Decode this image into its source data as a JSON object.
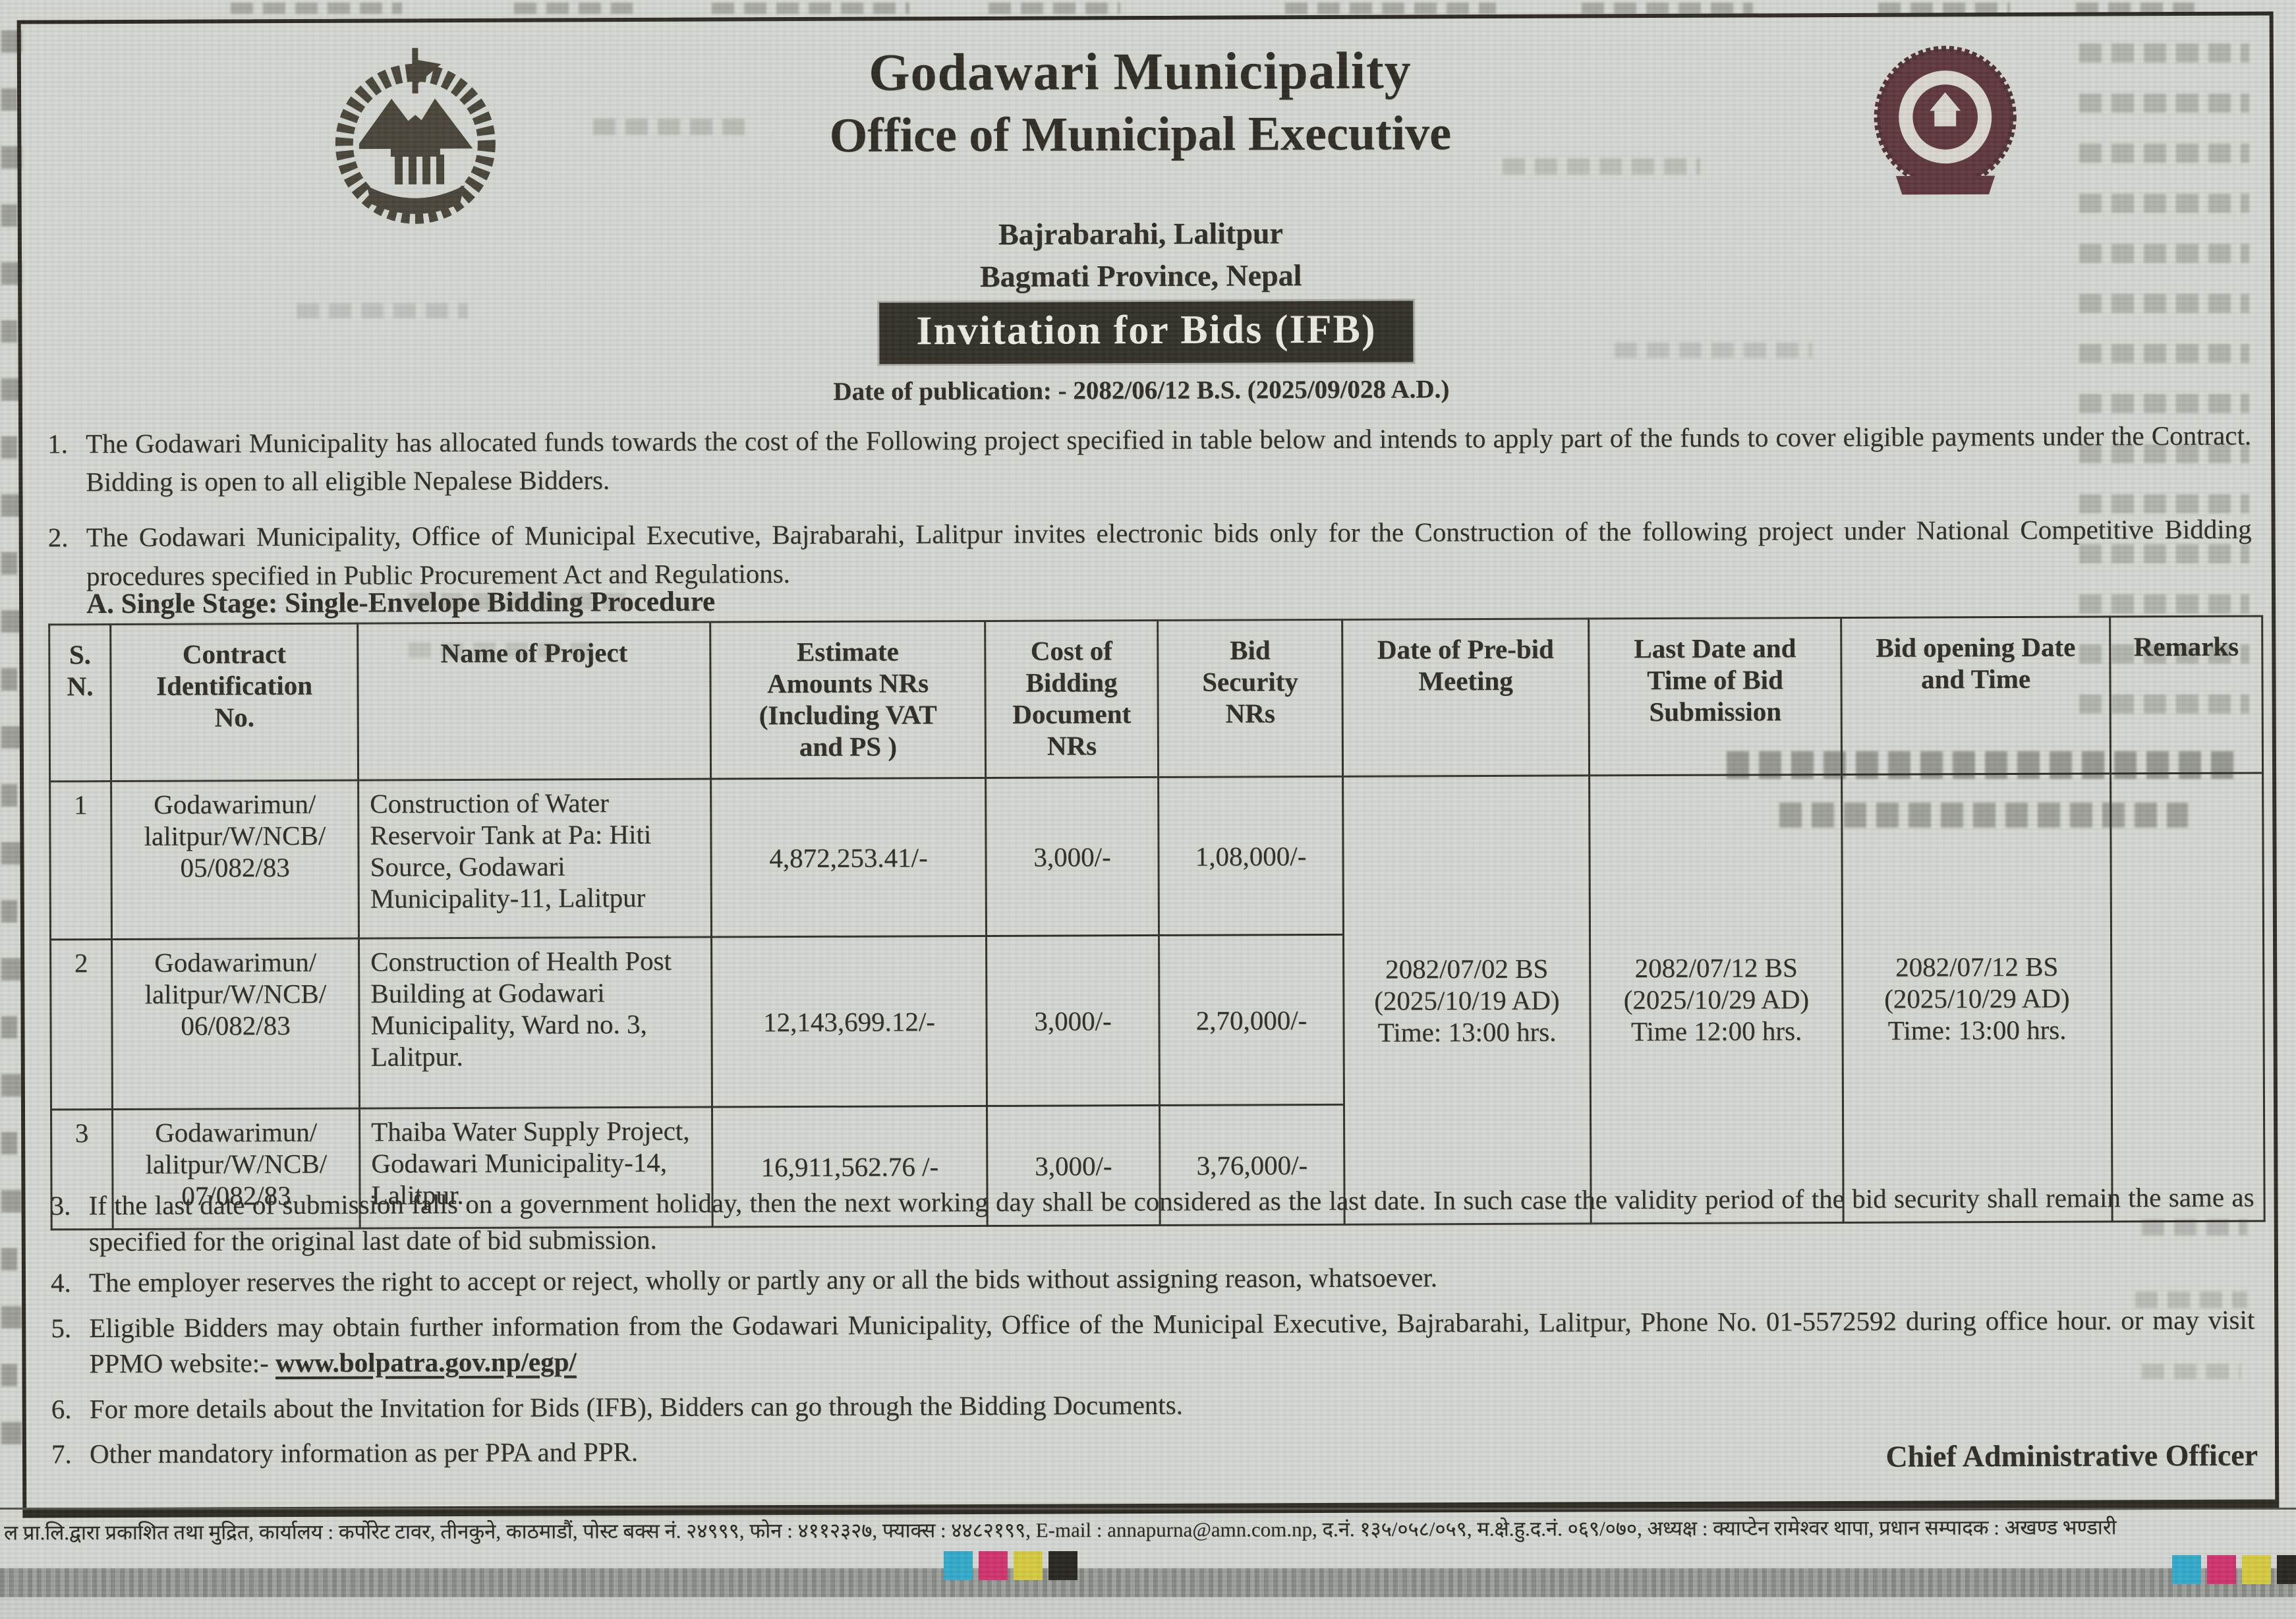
{
  "colors": {
    "paper": "#d3d6d0",
    "ink": "#26231c",
    "banner_bg": "#2b2720",
    "banner_fg": "#ece9df",
    "seal_maroon": "#4e2129",
    "registration": [
      "#2ba6c9",
      "#ce2a68",
      "#d4c838",
      "#201d19"
    ]
  },
  "icons": {
    "left_emblem": "nepal-coat-of-arms-emblem",
    "right_emblem": "godawari-municipality-seal"
  },
  "notice": {
    "org": {
      "municipality": "Godawari Municipality",
      "office": "Office of Municipal Executive",
      "address": "Bajrabarahi, Lalitpur",
      "province": "Bagmati Province, Nepal"
    },
    "banner": "Invitation for Bids (IFB)",
    "publication_date": "Date of publication: - 2082/06/12 B.S. (2025/09/028 A.D.)",
    "intro": [
      {
        "no": "1.",
        "text": "The Godawari Municipality has allocated funds towards the cost of the Following project specified in table below and intends to apply part of the funds to cover eligible payments under the Contract. Bidding is open to all eligible Nepalese Bidders."
      },
      {
        "no": "2.",
        "text": "The Godawari Municipality, Office of Municipal Executive, Bajrabarahi, Lalitpur invites electronic bids only for the Construction of the following project under National Competitive Bidding procedures specified in Public Procurement Act and Regulations."
      }
    ],
    "procedure_heading": {
      "no": "A.",
      "text": "Single Stage: Single-Envelope Bidding Procedure"
    },
    "table": {
      "headers": {
        "sn": "S.\nN.",
        "contract": "Contract\nIdentification\nNo.",
        "project": "Name of Project",
        "estimate": "Estimate\nAmounts NRs\n(Including VAT\nand PS )",
        "doc_cost": "Cost of\nBidding\nDocument\nNRs",
        "security": "Bid\nSecurity\nNRs",
        "prebid": "Date of Pre-bid\nMeeting",
        "submission": "Last Date and\nTime  of Bid\nSubmission",
        "opening": "Bid opening Date\nand Time",
        "remarks": "Remarks"
      },
      "rows": [
        {
          "sn": "1",
          "contract_id": "Godawarimun/ lalitpur/W/NCB/ 05/082/83",
          "project": "Construction of Water Reservoir Tank at Pa: Hiti Source, Godawari Municipality-11, Lalitpur",
          "estimate": "4,872,253.41/-",
          "doc_cost": "3,000/-",
          "security": "1,08,000/-"
        },
        {
          "sn": "2",
          "contract_id": "Godawarimun/ lalitpur/W/NCB/ 06/082/83",
          "project": "Construction of Health Post Building at Godawari Municipality, Ward no. 3, Lalitpur.",
          "estimate": "12,143,699.12/-",
          "doc_cost": "3,000/-",
          "security": "2,70,000/-"
        },
        {
          "sn": "3",
          "contract_id": "Godawarimun/ lalitpur/W/NCB/ 07/082/83",
          "project": "Thaiba Water Supply Project, Godawari Municipality-14, Lalitpur.",
          "estimate": "16,911,562.76 /-",
          "doc_cost": "3,000/-",
          "security": "3,76,000/-"
        }
      ],
      "shared": {
        "prebid": "2082/07/02 BS\n(2025/10/19 AD)\nTime: 13:00 hrs.",
        "submission": "2082/07/12 BS\n(2025/10/29 AD)\nTime 12:00 hrs.",
        "opening": "2082/07/12 BS\n(2025/10/29 AD)\nTime: 13:00 hrs.",
        "remarks": ""
      }
    },
    "notes": [
      {
        "no": "3.",
        "text": "If the last date of submission falls on a government holiday, then the next working day shall be considered as the last date. In such case the validity period of the bid security shall remain the same as specified for the original last date of bid submission."
      },
      {
        "no": "4.",
        "text": "The employer reserves the right to accept or reject, wholly or partly any or all the bids without assigning reason, whatsoever."
      },
      {
        "no": "5.",
        "text": "Eligible Bidders may obtain further information from the Godawari Municipality, Office of the Municipal Executive, Bajrabarahi, Lalitpur, Phone No. 01-5572592 during office hour. or  may visit PPMO website:- ",
        "link": "www.bolpatra.gov.np/egp/"
      },
      {
        "no": "6.",
        "text": "For more details about the Invitation for Bids (IFB), Bidders can go through the Bidding Documents."
      },
      {
        "no": "7.",
        "text": "Other mandatory information as per PPA and PPR."
      }
    ],
    "signature": "Chief Administrative Officer"
  },
  "newspaper": {
    "imprint_line": "ल प्रा.लि.द्वारा प्रकाशित तथा मुद्रित, कार्यालय : कर्पोरेट टावर, तीनकुने, काठमाडौं, पोस्ट बक्स नं. २४९९९, फोन : ४११२३२७, फ्याक्स : ४४८२१९९, E-mail : annapurna@amn.com.np, द.नं. १३५/०५८/०५९, म.क्षे.हु.द.नं. ०६९/०७०, अध्यक्ष : क्याप्टेन रामेश्वर थापा, प्रधान सम्पादक : अखण्ड भण्डारी"
  }
}
